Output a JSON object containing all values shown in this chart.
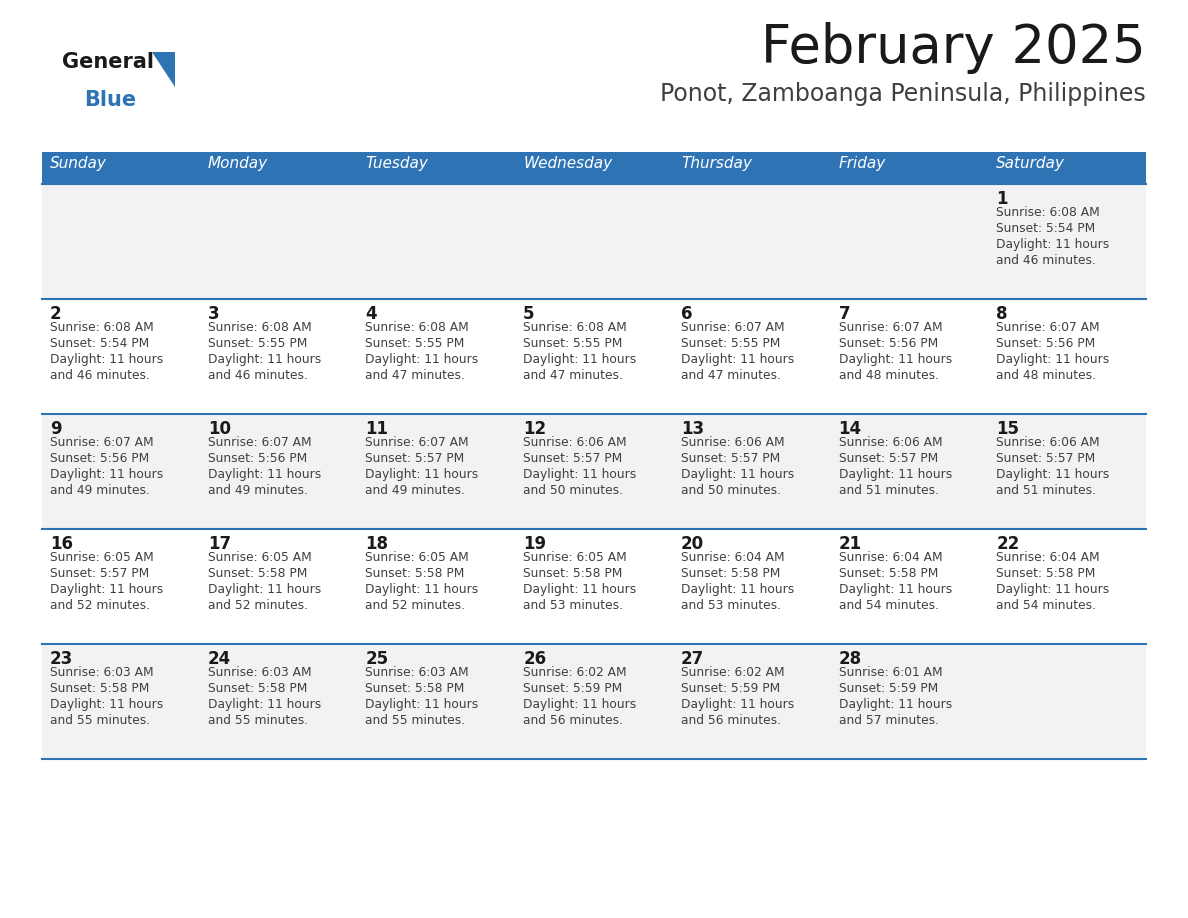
{
  "title": "February 2025",
  "subtitle": "Ponot, Zamboanga Peninsula, Philippines",
  "days_of_week": [
    "Sunday",
    "Monday",
    "Tuesday",
    "Wednesday",
    "Thursday",
    "Friday",
    "Saturday"
  ],
  "header_bg": "#2E74B5",
  "header_text_color": "#FFFFFF",
  "row_bg_odd": "#F2F2F2",
  "row_bg_even": "#FFFFFF",
  "cell_border_color": "#2E74B5",
  "title_color": "#1A1A1A",
  "subtitle_color": "#404040",
  "day_number_color": "#1A1A1A",
  "cell_text_color": "#404040",
  "calendar_data": [
    [
      null,
      null,
      null,
      null,
      null,
      null,
      {
        "day": 1,
        "sunrise": "6:08 AM",
        "sunset": "5:54 PM",
        "daylight": "11 hours and 46 minutes."
      }
    ],
    [
      {
        "day": 2,
        "sunrise": "6:08 AM",
        "sunset": "5:54 PM",
        "daylight": "11 hours and 46 minutes."
      },
      {
        "day": 3,
        "sunrise": "6:08 AM",
        "sunset": "5:55 PM",
        "daylight": "11 hours and 46 minutes."
      },
      {
        "day": 4,
        "sunrise": "6:08 AM",
        "sunset": "5:55 PM",
        "daylight": "11 hours and 47 minutes."
      },
      {
        "day": 5,
        "sunrise": "6:08 AM",
        "sunset": "5:55 PM",
        "daylight": "11 hours and 47 minutes."
      },
      {
        "day": 6,
        "sunrise": "6:07 AM",
        "sunset": "5:55 PM",
        "daylight": "11 hours and 47 minutes."
      },
      {
        "day": 7,
        "sunrise": "6:07 AM",
        "sunset": "5:56 PM",
        "daylight": "11 hours and 48 minutes."
      },
      {
        "day": 8,
        "sunrise": "6:07 AM",
        "sunset": "5:56 PM",
        "daylight": "11 hours and 48 minutes."
      }
    ],
    [
      {
        "day": 9,
        "sunrise": "6:07 AM",
        "sunset": "5:56 PM",
        "daylight": "11 hours and 49 minutes."
      },
      {
        "day": 10,
        "sunrise": "6:07 AM",
        "sunset": "5:56 PM",
        "daylight": "11 hours and 49 minutes."
      },
      {
        "day": 11,
        "sunrise": "6:07 AM",
        "sunset": "5:57 PM",
        "daylight": "11 hours and 49 minutes."
      },
      {
        "day": 12,
        "sunrise": "6:06 AM",
        "sunset": "5:57 PM",
        "daylight": "11 hours and 50 minutes."
      },
      {
        "day": 13,
        "sunrise": "6:06 AM",
        "sunset": "5:57 PM",
        "daylight": "11 hours and 50 minutes."
      },
      {
        "day": 14,
        "sunrise": "6:06 AM",
        "sunset": "5:57 PM",
        "daylight": "11 hours and 51 minutes."
      },
      {
        "day": 15,
        "sunrise": "6:06 AM",
        "sunset": "5:57 PM",
        "daylight": "11 hours and 51 minutes."
      }
    ],
    [
      {
        "day": 16,
        "sunrise": "6:05 AM",
        "sunset": "5:57 PM",
        "daylight": "11 hours and 52 minutes."
      },
      {
        "day": 17,
        "sunrise": "6:05 AM",
        "sunset": "5:58 PM",
        "daylight": "11 hours and 52 minutes."
      },
      {
        "day": 18,
        "sunrise": "6:05 AM",
        "sunset": "5:58 PM",
        "daylight": "11 hours and 52 minutes."
      },
      {
        "day": 19,
        "sunrise": "6:05 AM",
        "sunset": "5:58 PM",
        "daylight": "11 hours and 53 minutes."
      },
      {
        "day": 20,
        "sunrise": "6:04 AM",
        "sunset": "5:58 PM",
        "daylight": "11 hours and 53 minutes."
      },
      {
        "day": 21,
        "sunrise": "6:04 AM",
        "sunset": "5:58 PM",
        "daylight": "11 hours and 54 minutes."
      },
      {
        "day": 22,
        "sunrise": "6:04 AM",
        "sunset": "5:58 PM",
        "daylight": "11 hours and 54 minutes."
      }
    ],
    [
      {
        "day": 23,
        "sunrise": "6:03 AM",
        "sunset": "5:58 PM",
        "daylight": "11 hours and 55 minutes."
      },
      {
        "day": 24,
        "sunrise": "6:03 AM",
        "sunset": "5:58 PM",
        "daylight": "11 hours and 55 minutes."
      },
      {
        "day": 25,
        "sunrise": "6:03 AM",
        "sunset": "5:58 PM",
        "daylight": "11 hours and 55 minutes."
      },
      {
        "day": 26,
        "sunrise": "6:02 AM",
        "sunset": "5:59 PM",
        "daylight": "11 hours and 56 minutes."
      },
      {
        "day": 27,
        "sunrise": "6:02 AM",
        "sunset": "5:59 PM",
        "daylight": "11 hours and 56 minutes."
      },
      {
        "day": 28,
        "sunrise": "6:01 AM",
        "sunset": "5:59 PM",
        "daylight": "11 hours and 57 minutes."
      },
      null
    ]
  ]
}
